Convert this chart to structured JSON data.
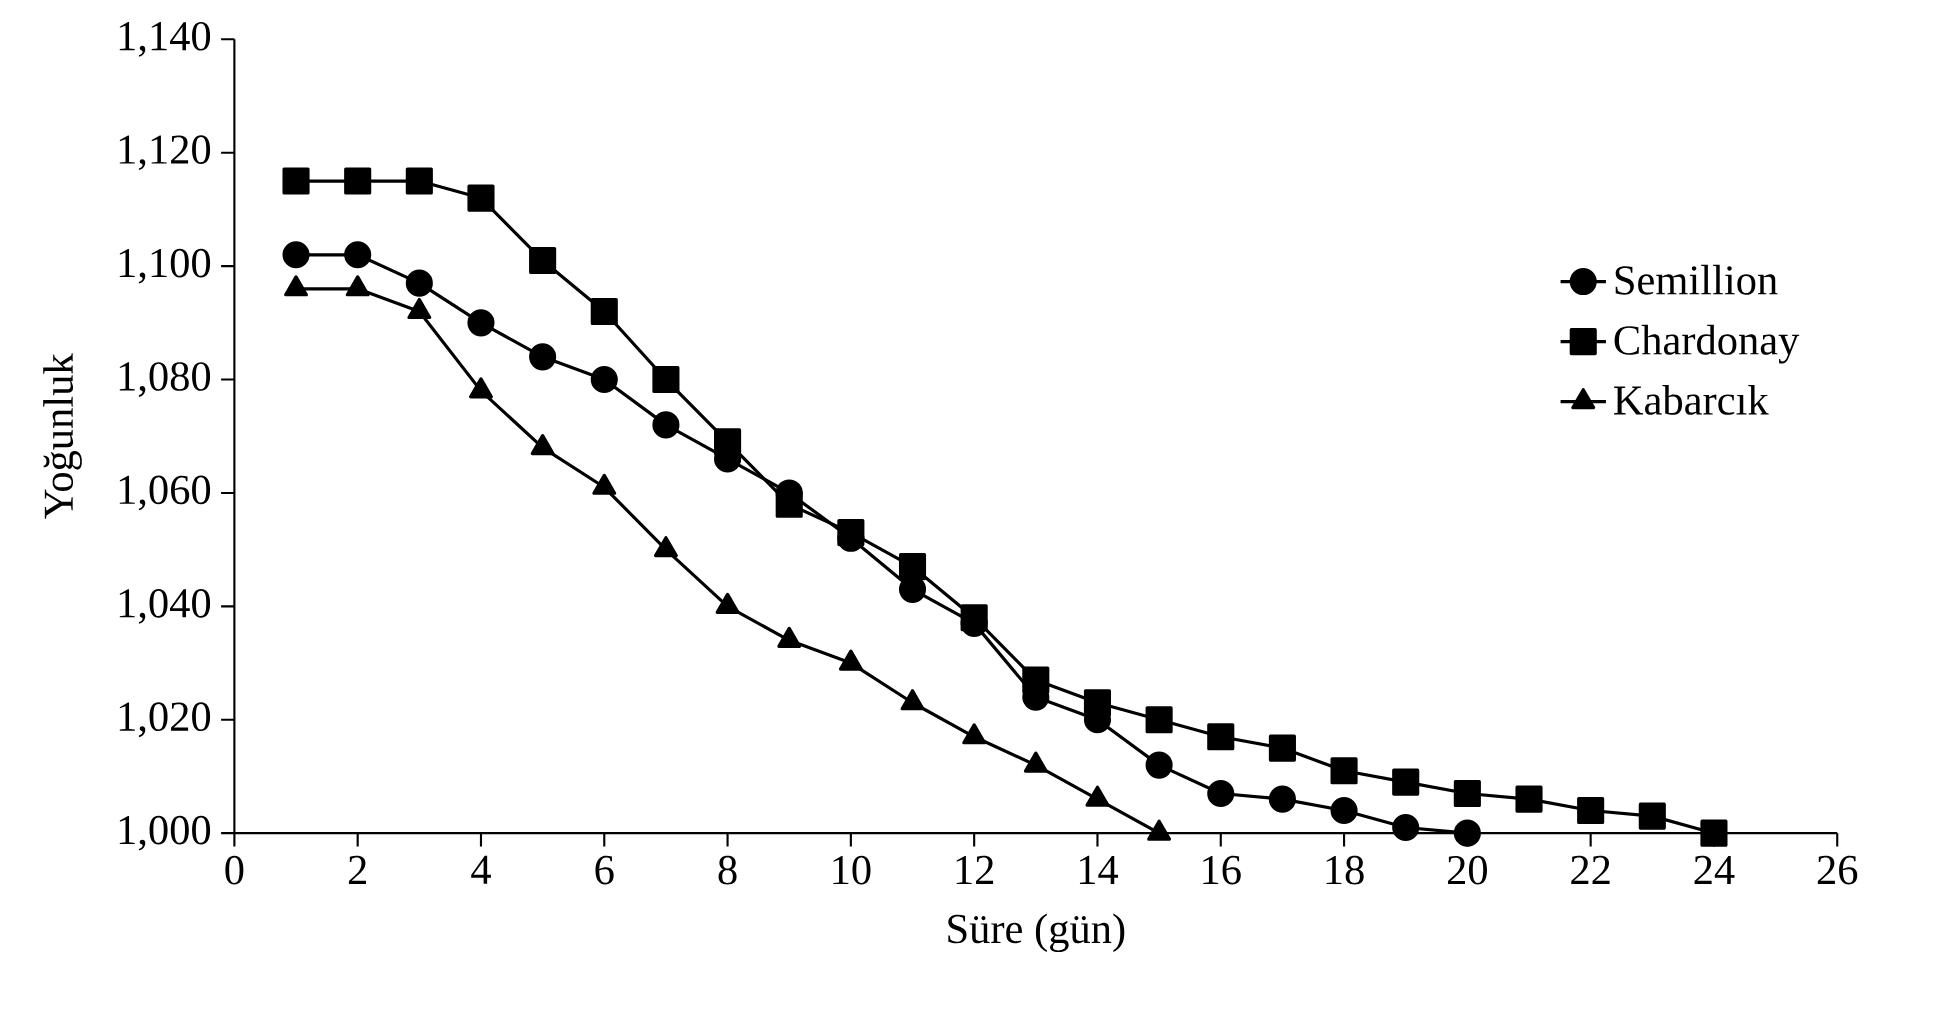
{
  "chart_data": {
    "type": "line",
    "xlabel": "Süre (gün)",
    "ylabel": "Yoğunluk",
    "xlim": [
      0,
      26
    ],
    "xticks": [
      0,
      2,
      4,
      6,
      8,
      10,
      12,
      14,
      16,
      18,
      20,
      22,
      24,
      26
    ],
    "ylim": [
      1000,
      1140
    ],
    "yticks": [
      {
        "value": 1000,
        "label": "1,000"
      },
      {
        "value": 1020,
        "label": "1,020"
      },
      {
        "value": 1040,
        "label": "1,040"
      },
      {
        "value": 1060,
        "label": "1,060"
      },
      {
        "value": 1080,
        "label": "1,080"
      },
      {
        "value": 1100,
        "label": "1,100"
      },
      {
        "value": 1120,
        "label": "1,120"
      },
      {
        "value": 1140,
        "label": "1,140"
      }
    ],
    "legend": "right",
    "grid": false,
    "line_style": "solid",
    "series": [
      {
        "name": "Semillion",
        "color": "#000000",
        "marker": "circle",
        "x": [
          1,
          2,
          3,
          4,
          5,
          6,
          7,
          8,
          9,
          10,
          11,
          12,
          13,
          14,
          15,
          16,
          17,
          18,
          19,
          20
        ],
        "values": [
          1102,
          1102,
          1097,
          1090,
          1084,
          1080,
          1072,
          1066,
          1060,
          1052,
          1043,
          1037,
          1024,
          1020,
          1012,
          1007,
          1006,
          1004,
          1001,
          1000
        ]
      },
      {
        "name": "Chardonay",
        "color": "#000000",
        "marker": "square",
        "x": [
          1,
          2,
          3,
          4,
          5,
          6,
          7,
          8,
          9,
          10,
          11,
          12,
          13,
          14,
          15,
          16,
          17,
          18,
          19,
          20,
          21,
          22,
          23,
          24
        ],
        "values": [
          1115,
          1115,
          1115,
          1112,
          1101,
          1092,
          1080,
          1069,
          1058,
          1053,
          1047,
          1038,
          1027,
          1023,
          1020,
          1017,
          1015,
          1011,
          1009,
          1007,
          1006,
          1004,
          1003,
          1000
        ]
      },
      {
        "name": "Kabarcık",
        "color": "#000000",
        "marker": "triangle",
        "x": [
          1,
          2,
          3,
          4,
          5,
          6,
          7,
          8,
          9,
          10,
          11,
          12,
          13,
          14,
          15
        ],
        "values": [
          1096,
          1096,
          1092,
          1078,
          1068,
          1061,
          1050,
          1040,
          1034,
          1030,
          1023,
          1017,
          1012,
          1006,
          1000
        ]
      }
    ]
  }
}
